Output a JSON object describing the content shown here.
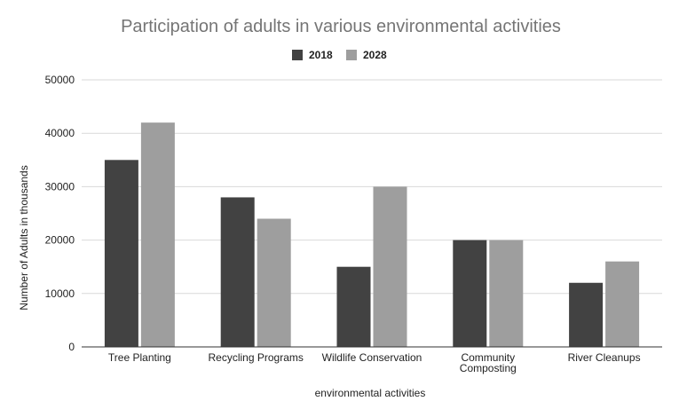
{
  "chart_data": {
    "type": "bar",
    "title": "Participation of adults in various environmental activities",
    "xlabel": "environmental activities",
    "ylabel": "Number of Adults in thousands",
    "categories": [
      "Tree Planting",
      "Recycling Programs",
      "Wildlife Conservation",
      "Community Composting",
      "River Cleanups"
    ],
    "category_lines": [
      [
        "Tree Planting"
      ],
      [
        "Recycling Programs"
      ],
      [
        "Wildlife Conservation"
      ],
      [
        "Community",
        "Composting"
      ],
      [
        "River Cleanups"
      ]
    ],
    "series": [
      {
        "name": "2018",
        "color": "#424242",
        "values": [
          35000,
          28000,
          15000,
          20000,
          12000
        ]
      },
      {
        "name": "2028",
        "color": "#9e9e9e",
        "values": [
          42000,
          24000,
          30000,
          20000,
          16000
        ]
      }
    ],
    "ylim": [
      0,
      50000
    ],
    "yticks": [
      0,
      10000,
      20000,
      30000,
      40000,
      50000
    ],
    "grid": true,
    "legend_position": "top-center"
  }
}
